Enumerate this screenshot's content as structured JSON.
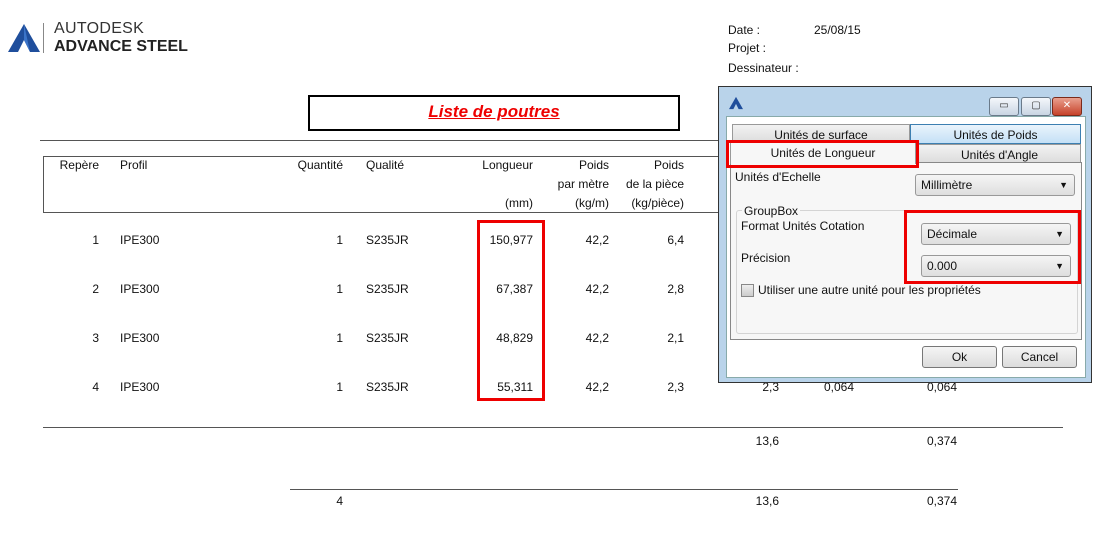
{
  "logo": {
    "line1": "AUTODESK",
    "line2": "ADVANCE STEEL"
  },
  "meta": {
    "date_label": "Date :",
    "date_value": "25/08/15",
    "projet_label": "Projet :",
    "dessinateur_label": "Dessinateur :"
  },
  "report_title": "Liste de poutres",
  "table": {
    "headers": {
      "repere": "Repère",
      "profil": "Profil",
      "quantite": "Quantité",
      "qualite": "Qualité",
      "longueur": "Longueur",
      "longueur_unit": "(mm)",
      "poids_m_1": "Poids",
      "poids_m_2": "par mètre",
      "poids_m_3": "(kg/m)",
      "poids_p_1": "Poids",
      "poids_p_2": "de la pièce",
      "poids_p_3": "(kg/pièce)"
    },
    "rows": [
      {
        "repere": "1",
        "profil": "IPE300",
        "quantite": "1",
        "qualite": "S235JR",
        "longueur": "150,977",
        "poids_m": "42,2",
        "poids_p": "6,4"
      },
      {
        "repere": "2",
        "profil": "IPE300",
        "quantite": "1",
        "qualite": "S235JR",
        "longueur": "67,387",
        "poids_m": "42,2",
        "poids_p": "2,8"
      },
      {
        "repere": "3",
        "profil": "IPE300",
        "quantite": "1",
        "qualite": "S235JR",
        "longueur": "48,829",
        "poids_m": "42,2",
        "poids_p": "2,1"
      },
      {
        "repere": "4",
        "profil": "IPE300",
        "quantite": "1",
        "qualite": "S235JR",
        "longueur": "55,311",
        "poids_m": "42,2",
        "poids_p": "2,3",
        "extra1": "2,3",
        "extra2": "0,064",
        "extra3": "0,064"
      }
    ],
    "subtotal": {
      "poids": "13,6",
      "surface": "0,374"
    },
    "total": {
      "quantite": "4",
      "poids": "13,6",
      "surface": "0,374"
    }
  },
  "dialog": {
    "tabs": [
      "Unités de surface",
      "Unités de Poids",
      "Unités de Longueur",
      "Unités d'Angle"
    ],
    "active_tab": "Unités de Longueur",
    "echelle_label": "Unités d'Echelle",
    "echelle_value": "Millimètre",
    "groupbox_label": "GroupBox",
    "format_label": "Format Unités Cotation",
    "format_value": "Décimale",
    "precision_label": "Précision",
    "precision_value": "0.000",
    "checkbox_label": "Utiliser une autre unité pour les propriétés",
    "checkbox_checked": false,
    "ok_label": "Ok",
    "cancel_label": "Cancel",
    "minimize": "▭",
    "maximize": "▢",
    "close": "✕"
  },
  "highlight_color": "#e00000"
}
